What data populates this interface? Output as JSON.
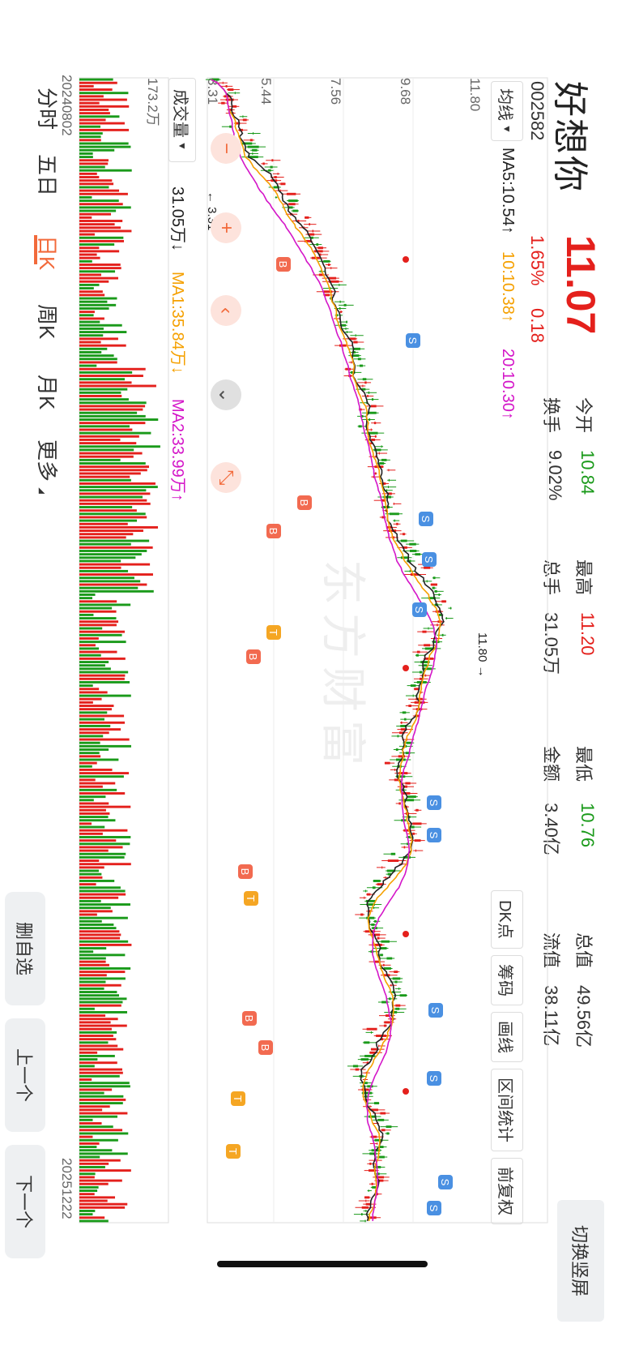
{
  "stock": {
    "name": "好想你",
    "code": "002582",
    "price": "11.07",
    "change_pct": "1.65%",
    "change": "0.18"
  },
  "stats": [
    {
      "label": "今开",
      "value": "10.84",
      "color": "#1a9a1a"
    },
    {
      "label": "换手",
      "value": "9.02%",
      "color": "#333333"
    },
    {
      "label": "最高",
      "value": "11.20",
      "color": "#e4201c"
    },
    {
      "label": "总手",
      "value": "31.05万",
      "color": "#333333"
    },
    {
      "label": "最低",
      "value": "10.76",
      "color": "#1a9a1a"
    },
    {
      "label": "金额",
      "value": "3.40亿",
      "color": "#333333"
    },
    {
      "label": "总值",
      "value": "49.56亿",
      "color": "#333333"
    },
    {
      "label": "流值",
      "value": "38.11亿",
      "color": "#333333"
    }
  ],
  "switch_label": "切换竖屏",
  "ma_selector": "均线",
  "ma_lines": [
    {
      "label": "MA5:10.54↑",
      "color": "#222222"
    },
    {
      "label": "10:10.38↑",
      "color": "#f5a000"
    },
    {
      "label": "20:10.30↑",
      "color": "#d416c8"
    }
  ],
  "tools": [
    "DK点",
    "筹码",
    "画线",
    "区间统计",
    "前复权"
  ],
  "price_axis": [
    "11.80",
    "9.68",
    "7.56",
    "5.44",
    "3.31"
  ],
  "price_max_label": "11.80",
  "price_min_label": "3.31",
  "volume_selector": "成交量",
  "volume_labels": [
    {
      "label": "31.05万↓",
      "color": "#222222"
    },
    {
      "label": "MA1:35.84万↓",
      "color": "#f5a000"
    },
    {
      "label": "MA2:33.99万↑",
      "color": "#d416c8"
    }
  ],
  "volume_axis_max": "173.2万",
  "date_start": "20240802",
  "date_end": "20251222",
  "bottom_tabs": [
    {
      "label": "分时",
      "active": false
    },
    {
      "label": "五日",
      "active": false
    },
    {
      "label": "日K",
      "active": true
    },
    {
      "label": "周K",
      "active": false
    },
    {
      "label": "月K",
      "active": false
    },
    {
      "label": "更多",
      "active": false
    }
  ],
  "nav_buttons": [
    "删自选",
    "上一个",
    "下一个"
  ],
  "watermark": "东方财富",
  "colors": {
    "up": "#e4201c",
    "down": "#1a9a1a",
    "accent": "#f26a3b",
    "sell": "#4a90e2",
    "buy": "#f26a50",
    "trade": "#f5a623"
  }
}
